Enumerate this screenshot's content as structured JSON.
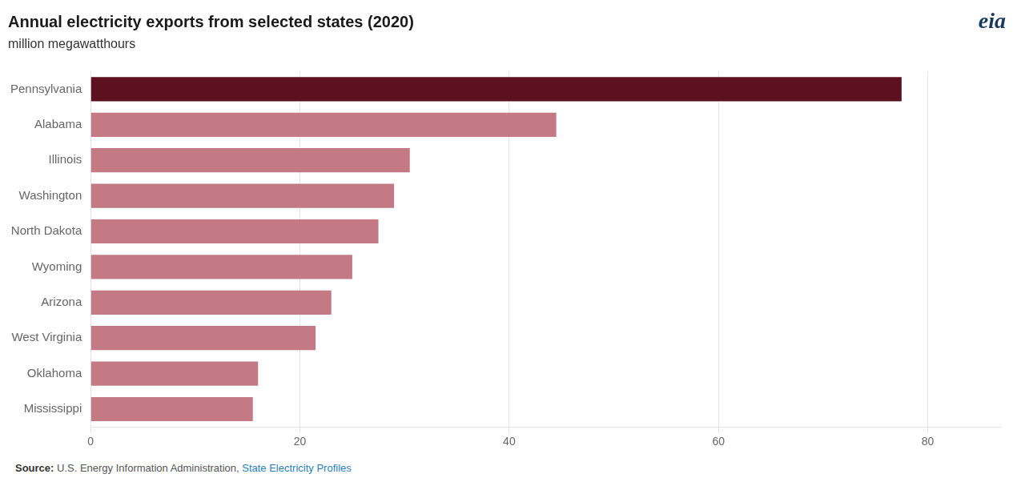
{
  "chart_data": {
    "type": "bar",
    "orientation": "horizontal",
    "title": "Annual electricity exports from selected states (2020)",
    "subtitle": "million megawatthours",
    "categories": [
      "Mississippi",
      "Oklahoma",
      "West Virginia",
      "Arizona",
      "Wyoming",
      "North Dakota",
      "Washington",
      "Illinois",
      "Alabama",
      "Pennsylvania"
    ],
    "values": [
      15.5,
      16.0,
      21.5,
      23.0,
      25.0,
      27.5,
      29.0,
      30.5,
      44.5,
      77.5
    ],
    "colors": [
      "#c47a85",
      "#c47a85",
      "#c47a85",
      "#c47a85",
      "#c47a85",
      "#c47a85",
      "#c47a85",
      "#c47a85",
      "#c47a85",
      "#5c1020"
    ],
    "xlim": [
      0,
      87
    ],
    "xticks": [
      0,
      20,
      40,
      60,
      80
    ],
    "grid": true,
    "annotations": [
      "Source:",
      "U.S. Energy Information Administration, ",
      "State Electricity Profiles",
      "eia"
    ]
  }
}
